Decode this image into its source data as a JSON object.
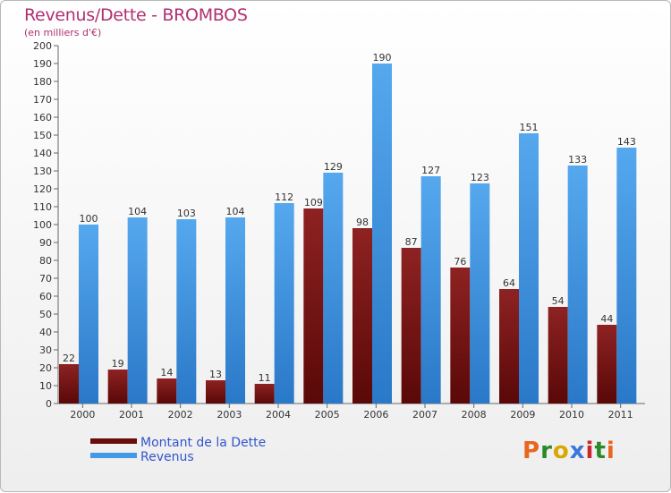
{
  "header": {
    "title": "Revenus/Dette - BROMBOS",
    "subtitle": "(en milliers d'€)"
  },
  "legend": {
    "items": [
      {
        "label": "Montant de la Dette",
        "color": "#7a1414"
      },
      {
        "label": "Revenus",
        "color": "#4499e6"
      }
    ]
  },
  "logo": {
    "text": "Proxiti",
    "colors": [
      "#e8661e",
      "#2a8a2a",
      "#d8a800",
      "#3a77d8",
      "#c8282e",
      "#2a8a2a",
      "#e8661e"
    ]
  },
  "chart_data": {
    "type": "bar",
    "title": "Revenus/Dette - BROMBOS",
    "ylabel": "(en milliers d'€)",
    "categories": [
      "2000",
      "2001",
      "2002",
      "2003",
      "2004",
      "2005",
      "2006",
      "2007",
      "2008",
      "2009",
      "2010",
      "2011"
    ],
    "series": [
      {
        "name": "Montant de la Dette",
        "color": "#7a1414",
        "values": [
          22,
          19,
          14,
          13,
          11,
          109,
          98,
          87,
          76,
          64,
          54,
          44
        ]
      },
      {
        "name": "Revenus",
        "color": "#4499e6",
        "values": [
          100,
          104,
          103,
          104,
          112,
          129,
          190,
          127,
          123,
          151,
          133,
          143
        ]
      }
    ],
    "ylim": [
      0,
      200
    ],
    "ytick_step": 10,
    "grid": false,
    "data_labels": true,
    "legend_position": "bottom-left"
  }
}
